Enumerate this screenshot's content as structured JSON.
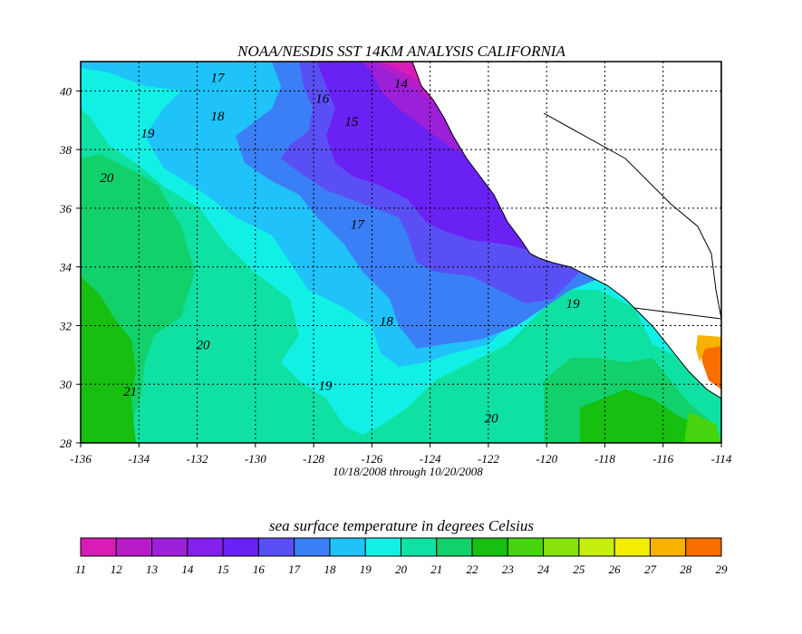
{
  "title": "NOAA/NESDIS SST 14KM ANALYSIS CALIFORNIA",
  "date_range": "10/18/2008 through 10/20/2008",
  "colorbar_title": "sea surface temperature in degrees Celsius",
  "map": {
    "lon_range": [
      -136,
      -114
    ],
    "lat_range": [
      28,
      41
    ],
    "lon_ticks": [
      "-136",
      "-134",
      "-132",
      "-130",
      "-128",
      "-126",
      "-124",
      "-122",
      "-120",
      "-118",
      "-116",
      "-114"
    ],
    "lat_ticks": [
      "28",
      "30",
      "32",
      "34",
      "36",
      "38",
      "40"
    ],
    "grid": "dotted",
    "contour_labels": [
      {
        "text": "17",
        "lon": -131.3,
        "lat": 40.3
      },
      {
        "text": "18",
        "lon": -131.3,
        "lat": 39.0
      },
      {
        "text": "19",
        "lon": -133.7,
        "lat": 38.4
      },
      {
        "text": "20",
        "lon": -135.1,
        "lat": 36.9
      },
      {
        "text": "16",
        "lon": -127.7,
        "lat": 39.6
      },
      {
        "text": "14",
        "lon": -125.0,
        "lat": 40.1
      },
      {
        "text": "15",
        "lon": -126.7,
        "lat": 38.8
      },
      {
        "text": "17",
        "lon": -126.5,
        "lat": 35.3
      },
      {
        "text": "18",
        "lon": -125.5,
        "lat": 32.0
      },
      {
        "text": "19",
        "lon": -127.6,
        "lat": 29.8
      },
      {
        "text": "20",
        "lon": -131.8,
        "lat": 31.2
      },
      {
        "text": "21",
        "lon": -134.3,
        "lat": 29.6
      },
      {
        "text": "20",
        "lon": -121.9,
        "lat": 28.7
      },
      {
        "text": "19",
        "lon": -119.1,
        "lat": 32.6
      }
    ]
  },
  "colorbar": {
    "labels": [
      "11",
      "12",
      "13",
      "14",
      "15",
      "16",
      "17",
      "18",
      "19",
      "20",
      "21",
      "22",
      "23",
      "24",
      "25",
      "26",
      "27",
      "28",
      "29"
    ],
    "colors": [
      "#d91cb6",
      "#b81cc9",
      "#9b20d8",
      "#8420ec",
      "#6a21f3",
      "#5a4ff5",
      "#3b7ff6",
      "#1fc3fa",
      "#12f0e6",
      "#0fe1a3",
      "#12d16b",
      "#16bf10",
      "#45d40e",
      "#88e20c",
      "#c6ee0e",
      "#f4ef00",
      "#f7b200",
      "#f86e00",
      "#f53c00"
    ]
  }
}
